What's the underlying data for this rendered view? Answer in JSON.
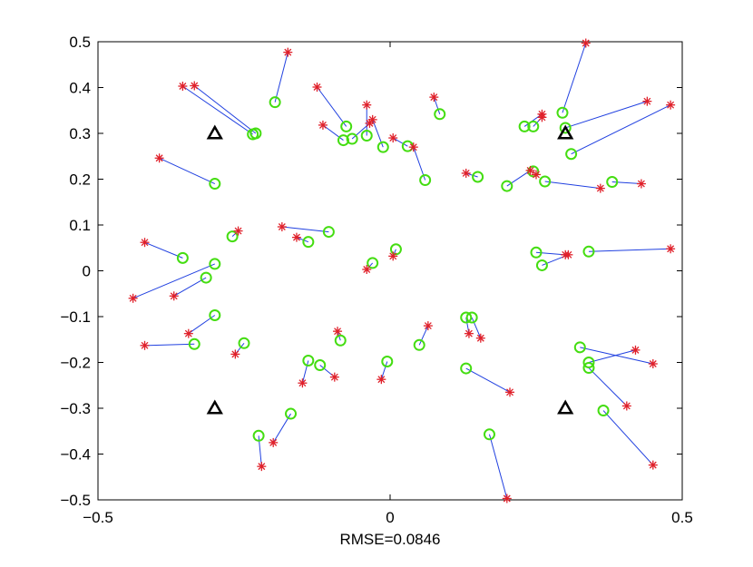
{
  "chart_data": {
    "type": "scatter",
    "title": "",
    "xlabel": "RMSE=0.0846",
    "ylabel": "",
    "xlim": [
      -0.5,
      0.5
    ],
    "ylim": [
      -0.5,
      0.5
    ],
    "xticks": [
      -0.5,
      0,
      0.5
    ],
    "xtick_labels": [
      "−0.5",
      "0",
      "0.5"
    ],
    "yticks": [
      -0.5,
      -0.4,
      -0.3,
      -0.2,
      -0.1,
      0,
      0.1,
      0.2,
      0.3,
      0.4,
      0.5
    ],
    "ytick_labels": [
      "−0.5",
      "−0.4",
      "−0.3",
      "−0.2",
      "−0.1",
      "0",
      "0.1",
      "0.2",
      "0.3",
      "0.4",
      "0.5"
    ],
    "grid": false,
    "legend": "none",
    "colors": {
      "true_marker": "#e0202a",
      "estimate_marker": "#44dd11",
      "error_line": "#2040e0",
      "anchor": "#000000"
    },
    "anchors": [
      {
        "x": -0.3,
        "y": 0.3
      },
      {
        "x": 0.3,
        "y": 0.3
      },
      {
        "x": -0.3,
        "y": -0.3
      },
      {
        "x": 0.3,
        "y": -0.3
      }
    ],
    "pairs": [
      {
        "true": [
          -0.335,
          0.404
        ],
        "est": [
          -0.23,
          0.3
        ]
      },
      {
        "true": [
          -0.355,
          0.403
        ],
        "est": [
          -0.235,
          0.298
        ]
      },
      {
        "true": [
          -0.175,
          0.477
        ],
        "est": [
          -0.197,
          0.368
        ]
      },
      {
        "true": [
          -0.125,
          0.401
        ],
        "est": [
          -0.075,
          0.315
        ]
      },
      {
        "true": [
          -0.115,
          0.318
        ],
        "est": [
          -0.08,
          0.285
        ]
      },
      {
        "true": [
          -0.04,
          0.362
        ],
        "est": [
          -0.04,
          0.295
        ]
      },
      {
        "true": [
          -0.035,
          0.322
        ],
        "est": [
          -0.065,
          0.288
        ]
      },
      {
        "true": [
          -0.03,
          0.33
        ],
        "est": [
          -0.012,
          0.27
        ]
      },
      {
        "true": [
          0.005,
          0.29
        ],
        "est": [
          0.03,
          0.272
        ]
      },
      {
        "true": [
          0.075,
          0.379
        ],
        "est": [
          0.085,
          0.342
        ]
      },
      {
        "true": [
          0.04,
          0.27
        ],
        "est": [
          0.06,
          0.198
        ]
      },
      {
        "true": [
          0.335,
          0.497
        ],
        "est": [
          0.295,
          0.345
        ]
      },
      {
        "true": [
          0.26,
          0.342
        ],
        "est": [
          0.23,
          0.315
        ]
      },
      {
        "true": [
          0.26,
          0.335
        ],
        "est": [
          0.245,
          0.315
        ]
      },
      {
        "true": [
          0.44,
          0.37
        ],
        "est": [
          0.3,
          0.312
        ]
      },
      {
        "true": [
          0.48,
          0.362
        ],
        "est": [
          0.31,
          0.255
        ]
      },
      {
        "true": [
          0.13,
          0.213
        ],
        "est": [
          0.15,
          0.205
        ]
      },
      {
        "true": [
          0.24,
          0.219
        ],
        "est": [
          0.2,
          0.185
        ]
      },
      {
        "true": [
          0.25,
          0.21
        ],
        "est": [
          0.245,
          0.217
        ]
      },
      {
        "true": [
          0.36,
          0.18
        ],
        "est": [
          0.265,
          0.195
        ]
      },
      {
        "true": [
          0.43,
          0.19
        ],
        "est": [
          0.38,
          0.194
        ]
      },
      {
        "true": [
          -0.395,
          0.246
        ],
        "est": [
          -0.3,
          0.19
        ]
      },
      {
        "true": [
          -0.42,
          0.062
        ],
        "est": [
          -0.355,
          0.028
        ]
      },
      {
        "true": [
          -0.44,
          -0.06
        ],
        "est": [
          -0.3,
          0.015
        ]
      },
      {
        "true": [
          -0.37,
          -0.055
        ],
        "est": [
          -0.315,
          -0.015
        ]
      },
      {
        "true": [
          -0.26,
          0.087
        ],
        "est": [
          -0.27,
          0.075
        ]
      },
      {
        "true": [
          -0.185,
          0.096
        ],
        "est": [
          -0.105,
          0.085
        ]
      },
      {
        "true": [
          -0.16,
          0.073
        ],
        "est": [
          -0.14,
          0.063
        ]
      },
      {
        "true": [
          -0.04,
          0.003
        ],
        "est": [
          -0.03,
          0.017
        ]
      },
      {
        "true": [
          0.005,
          0.032
        ],
        "est": [
          0.01,
          0.047
        ]
      },
      {
        "true": [
          0.3,
          0.035
        ],
        "est": [
          0.25,
          0.04
        ]
      },
      {
        "true": [
          0.305,
          0.035
        ],
        "est": [
          0.26,
          0.012
        ]
      },
      {
        "true": [
          0.48,
          0.048
        ],
        "est": [
          0.34,
          0.042
        ]
      },
      {
        "true": [
          -0.345,
          -0.137
        ],
        "est": [
          -0.3,
          -0.097
        ]
      },
      {
        "true": [
          -0.42,
          -0.163
        ],
        "est": [
          -0.335,
          -0.16
        ]
      },
      {
        "true": [
          -0.265,
          -0.182
        ],
        "est": [
          -0.25,
          -0.158
        ]
      },
      {
        "true": [
          -0.09,
          -0.132
        ],
        "est": [
          -0.085,
          -0.152
        ]
      },
      {
        "true": [
          -0.15,
          -0.245
        ],
        "est": [
          -0.14,
          -0.196
        ]
      },
      {
        "true": [
          -0.095,
          -0.232
        ],
        "est": [
          -0.12,
          -0.206
        ]
      },
      {
        "true": [
          -0.015,
          -0.237
        ],
        "est": [
          -0.005,
          -0.198
        ]
      },
      {
        "true": [
          0.065,
          -0.12
        ],
        "est": [
          0.05,
          -0.162
        ]
      },
      {
        "true": [
          0.135,
          -0.137
        ],
        "est": [
          0.13,
          -0.102
        ]
      },
      {
        "true": [
          0.155,
          -0.147
        ],
        "est": [
          0.14,
          -0.102
        ]
      },
      {
        "true": [
          0.205,
          -0.265
        ],
        "est": [
          0.13,
          -0.213
        ]
      },
      {
        "true": [
          0.42,
          -0.173
        ],
        "est": [
          0.34,
          -0.2
        ]
      },
      {
        "true": [
          0.45,
          -0.203
        ],
        "est": [
          0.325,
          -0.167
        ]
      },
      {
        "true": [
          0.405,
          -0.295
        ],
        "est": [
          0.34,
          -0.212
        ]
      },
      {
        "true": [
          0.45,
          -0.424
        ],
        "est": [
          0.365,
          -0.305
        ]
      },
      {
        "true": [
          -0.2,
          -0.375
        ],
        "est": [
          -0.17,
          -0.312
        ]
      },
      {
        "true": [
          -0.22,
          -0.427
        ],
        "est": [
          -0.225,
          -0.36
        ]
      },
      {
        "true": [
          0.2,
          -0.497
        ],
        "est": [
          0.17,
          -0.357
        ]
      }
    ]
  }
}
